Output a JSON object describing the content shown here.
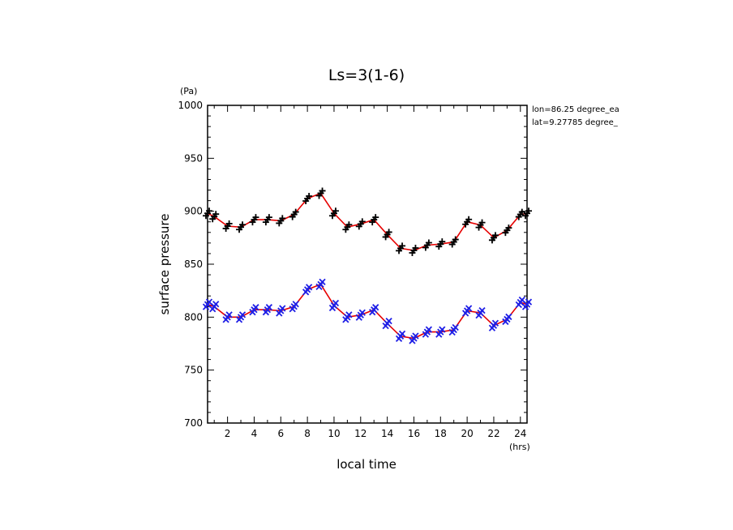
{
  "chart_data": {
    "type": "scatter",
    "title": "Ls=3(1-6)",
    "xlabel": "local time",
    "ylabel": "surface pressure",
    "x_unit": "(hrs)",
    "y_unit": "(Pa)",
    "xlim": [
      0.5,
      24.5
    ],
    "ylim": [
      700,
      1000
    ],
    "xticks": [
      "2",
      "4",
      "6",
      "8",
      "10",
      "12",
      "14",
      "16",
      "18",
      "20",
      "22",
      "24"
    ],
    "yticks": [
      "700",
      "750",
      "800",
      "850",
      "900",
      "950",
      "1000"
    ],
    "annotations": [
      "lon=86.25 degree_ea",
      "lat=9.27785 degree_"
    ],
    "grid": false,
    "colors": {
      "upper_markers": "#000000",
      "lower_markers": "#1f1fe6",
      "mean_line": "#e60000"
    },
    "x": [
      0.5,
      1,
      2,
      3,
      4,
      5,
      6,
      7,
      8,
      9,
      10,
      11,
      12,
      13,
      14,
      15,
      16,
      17,
      18,
      19,
      20,
      21,
      22,
      23,
      24,
      24.5
    ],
    "series": [
      {
        "marker": "plus",
        "values": [
          898,
          895,
          886,
          885,
          892,
          892,
          891,
          897,
          912,
          917,
          898,
          885,
          888,
          892,
          878,
          865,
          863,
          868,
          869,
          871,
          890,
          887,
          875,
          882,
          897,
          898
        ]
      },
      {
        "marker": "cross",
        "values": [
          812,
          810,
          800,
          800,
          807,
          807,
          806,
          810,
          826,
          831,
          811,
          800,
          802,
          807,
          794,
          782,
          780,
          786,
          786,
          788,
          806,
          804,
          792,
          798,
          814,
          812
        ]
      }
    ]
  }
}
